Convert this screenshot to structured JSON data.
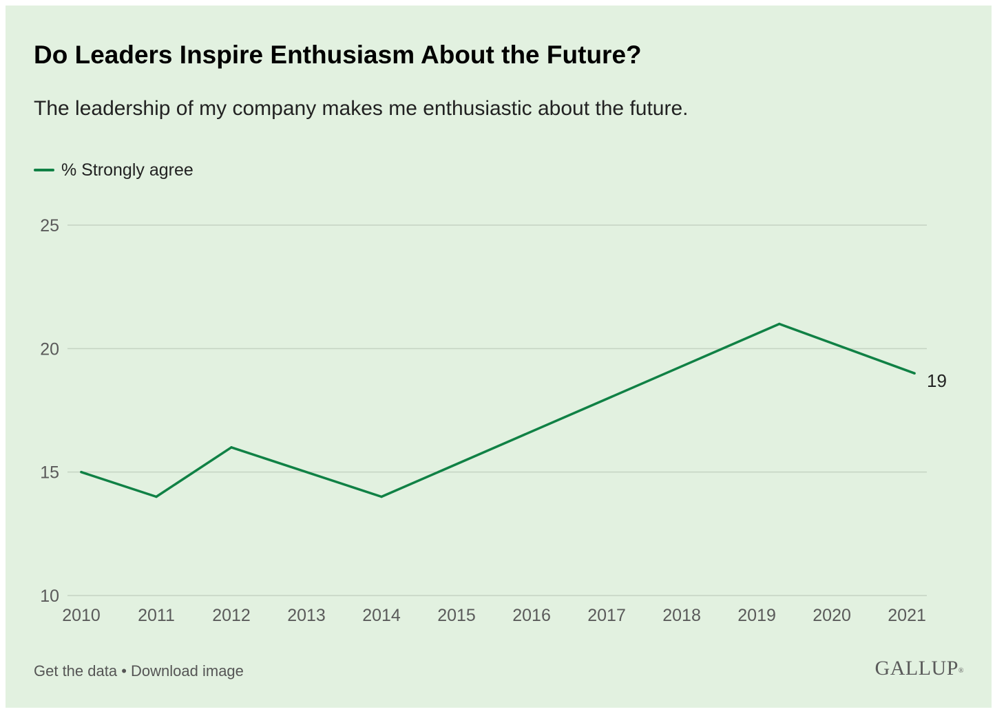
{
  "colors": {
    "background": "#e2f1e0",
    "series": "#108145",
    "gridline": "#c5d3c3",
    "tick_text": "#5a5a5a"
  },
  "footer": {
    "get_data": "Get the data",
    "separator": " • ",
    "download": "Download image"
  },
  "logo": {
    "text": "GALLUP",
    "mark": "®"
  },
  "chart_data": {
    "type": "line",
    "title": "Do Leaders Inspire Enthusiasm About the Future?",
    "subtitle": "The leadership of my company makes me enthusiastic about the future.",
    "xlabel": "",
    "ylabel": "",
    "xlim": [
      2010,
      2021.1
    ],
    "ylim": [
      10,
      25
    ],
    "x_ticks": [
      2010,
      2011,
      2012,
      2013,
      2014,
      2015,
      2016,
      2017,
      2018,
      2019,
      2020,
      2021
    ],
    "y_ticks": [
      10,
      15,
      20,
      25
    ],
    "grid": true,
    "legend": "top-left",
    "series": [
      {
        "name": "% Strongly agree",
        "points": [
          {
            "x": 2010,
            "y": 15
          },
          {
            "x": 2011,
            "y": 14
          },
          {
            "x": 2012,
            "y": 16
          },
          {
            "x": 2014,
            "y": 14
          },
          {
            "x": 2019.3,
            "y": 21
          },
          {
            "x": 2021.1,
            "y": 19
          }
        ],
        "end_label": "19"
      }
    ]
  }
}
